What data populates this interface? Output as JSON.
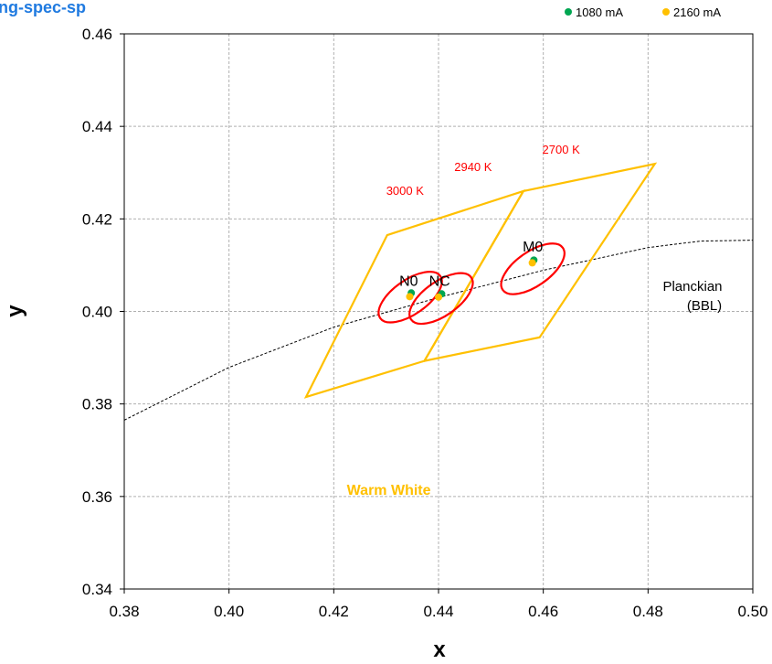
{
  "chart_data": {
    "type": "scatter",
    "title": "ng-spec-sp",
    "xlabel": "x",
    "ylabel": "y",
    "xlim": [
      0.38,
      0.5
    ],
    "ylim": [
      0.34,
      0.46
    ],
    "x_ticks": [
      "0.38",
      "0.40",
      "0.42",
      "0.44",
      "0.46",
      "0.48",
      "0.50"
    ],
    "y_ticks": [
      "0.34",
      "0.36",
      "0.38",
      "0.40",
      "0.42",
      "0.44",
      "0.46"
    ],
    "grid": true,
    "legend_position": "top-right",
    "series": [
      {
        "name": "1080 mA",
        "color": "#00a651",
        "points": [
          {
            "label": "N0",
            "x": 0.4348,
            "y": 0.404
          },
          {
            "label": "NC",
            "x": 0.4406,
            "y": 0.4038
          },
          {
            "label": "M0",
            "x": 0.4582,
            "y": 0.4111
          }
        ]
      },
      {
        "name": "2160 mA",
        "color": "#ffc000",
        "points": [
          {
            "label": "N0",
            "x": 0.4345,
            "y": 0.4032
          },
          {
            "label": "NC",
            "x": 0.44,
            "y": 0.4031
          },
          {
            "label": "M0",
            "x": 0.4579,
            "y": 0.4105
          }
        ]
      }
    ],
    "bin_labels": [
      {
        "text": "N0",
        "x": 0.4343,
        "y": 0.4055
      },
      {
        "text": "NC",
        "x": 0.4402,
        "y": 0.4055
      },
      {
        "text": "M0",
        "x": 0.458,
        "y": 0.4129
      }
    ],
    "cct_labels": [
      {
        "text": "3000 K",
        "x": 0.4336,
        "y": 0.4252
      },
      {
        "text": "2940 K",
        "x": 0.4466,
        "y": 0.4303
      },
      {
        "text": "2700 K",
        "x": 0.4634,
        "y": 0.4341
      }
    ],
    "quadrangles": [
      {
        "color": "#ffc000",
        "points": [
          [
            0.4302,
            0.4165
          ],
          [
            0.4562,
            0.426
          ],
          [
            0.4373,
            0.3893
          ],
          [
            0.4147,
            0.3815
          ]
        ]
      },
      {
        "color": "#ffc000",
        "points": [
          [
            0.4562,
            0.426
          ],
          [
            0.4813,
            0.4319
          ],
          [
            0.4593,
            0.3944
          ],
          [
            0.4373,
            0.3893
          ]
        ]
      }
    ],
    "ellipses": [
      {
        "color": "#ff0000",
        "cx": 0.4346,
        "cy": 0.4031,
        "rx": 0.007,
        "ry": 0.0037,
        "angle_deg": -35
      },
      {
        "color": "#ff0000",
        "cx": 0.4405,
        "cy": 0.4028,
        "rx": 0.007,
        "ry": 0.0037,
        "angle_deg": -35
      },
      {
        "color": "#ff0000",
        "cx": 0.458,
        "cy": 0.4092,
        "rx": 0.007,
        "ry": 0.0037,
        "angle_deg": -35
      }
    ],
    "planckian": {
      "label_line1": "Planckian",
      "label_line2": "(BBL)",
      "points": [
        [
          0.38,
          0.3765
        ],
        [
          0.4,
          0.3879
        ],
        [
          0.42,
          0.3966
        ],
        [
          0.44,
          0.403
        ],
        [
          0.46,
          0.4089
        ],
        [
          0.48,
          0.4138
        ],
        [
          0.49,
          0.4152
        ],
        [
          0.5,
          0.4154
        ]
      ]
    },
    "zone_label": {
      "text": "Warm White",
      "x": 0.4225,
      "y": 0.3604
    }
  }
}
